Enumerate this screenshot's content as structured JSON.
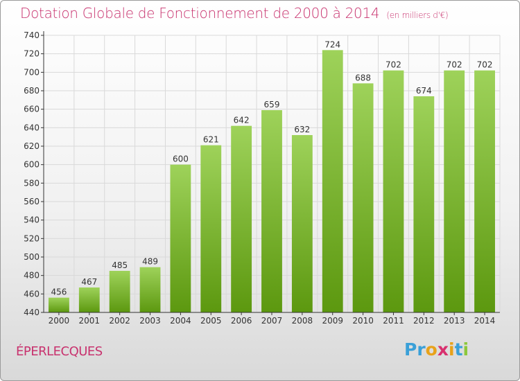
{
  "title": "Dotation Globale de Fonctionnement de 2000 à 2014",
  "unit_note": "(en milliers d'€)",
  "commune": "ÉPERLECQUES",
  "logo": {
    "text": "Proxiti",
    "letters": [
      {
        "ch": "P",
        "color": "#3aa0d8"
      },
      {
        "ch": "r",
        "color": "#3aa0d8"
      },
      {
        "ch": "o",
        "color": "#e8a21a"
      },
      {
        "ch": "x",
        "color": "#d8306e"
      },
      {
        "ch": "i",
        "color": "#e8a21a"
      },
      {
        "ch": "t",
        "color": "#3aa0d8"
      },
      {
        "ch": "i",
        "color": "#8cc83c"
      }
    ]
  },
  "colors": {
    "accent": "#c8326e",
    "bar_top": "#9ed25a",
    "bar_bottom": "#5c980f",
    "axis": "#333333",
    "grid": "#d9d9d9"
  },
  "chart_data": {
    "type": "bar",
    "categories": [
      "2000",
      "2001",
      "2002",
      "2003",
      "2004",
      "2005",
      "2006",
      "2007",
      "2008",
      "2009",
      "2010",
      "2011",
      "2012",
      "2013",
      "2014"
    ],
    "values": [
      456,
      467,
      485,
      489,
      600,
      621,
      642,
      659,
      632,
      724,
      688,
      702,
      674,
      702,
      702
    ],
    "ylim": [
      440,
      740
    ],
    "yticks": [
      440,
      460,
      480,
      500,
      520,
      540,
      560,
      580,
      600,
      620,
      640,
      660,
      680,
      700,
      720,
      740
    ],
    "grid": true
  }
}
